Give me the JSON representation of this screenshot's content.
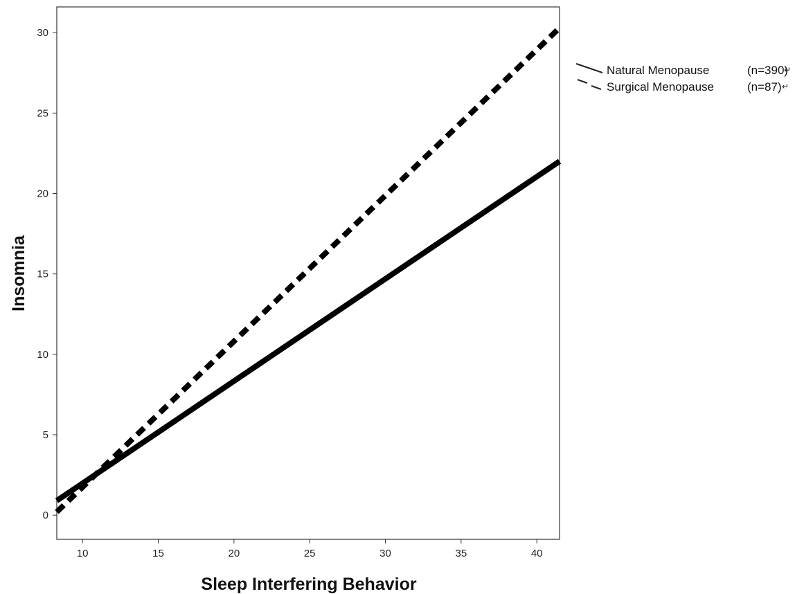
{
  "chart_data": {
    "type": "line",
    "xlabel": "Sleep Interfering Behavior",
    "ylabel": "Insomnia",
    "xlim": [
      8.3,
      41.5
    ],
    "ylim": [
      -1.5,
      31.6
    ],
    "x_ticks": [
      10,
      15,
      20,
      25,
      30,
      35,
      40
    ],
    "y_ticks": [
      0,
      5,
      10,
      15,
      20,
      25,
      30
    ],
    "grid": false,
    "legend_position": "outside-right",
    "series": [
      {
        "name": "Natural Menopause",
        "count_label": "(n=390)",
        "style": "solid",
        "color": "#000000",
        "x": [
          8.3,
          41.5
        ],
        "y": [
          0.9,
          22.0
        ]
      },
      {
        "name": "Surgical Menopause",
        "count_label": "(n=87)",
        "style": "dashed",
        "color": "#000000",
        "x": [
          8.3,
          41.5
        ],
        "y": [
          0.2,
          30.3
        ]
      }
    ]
  }
}
